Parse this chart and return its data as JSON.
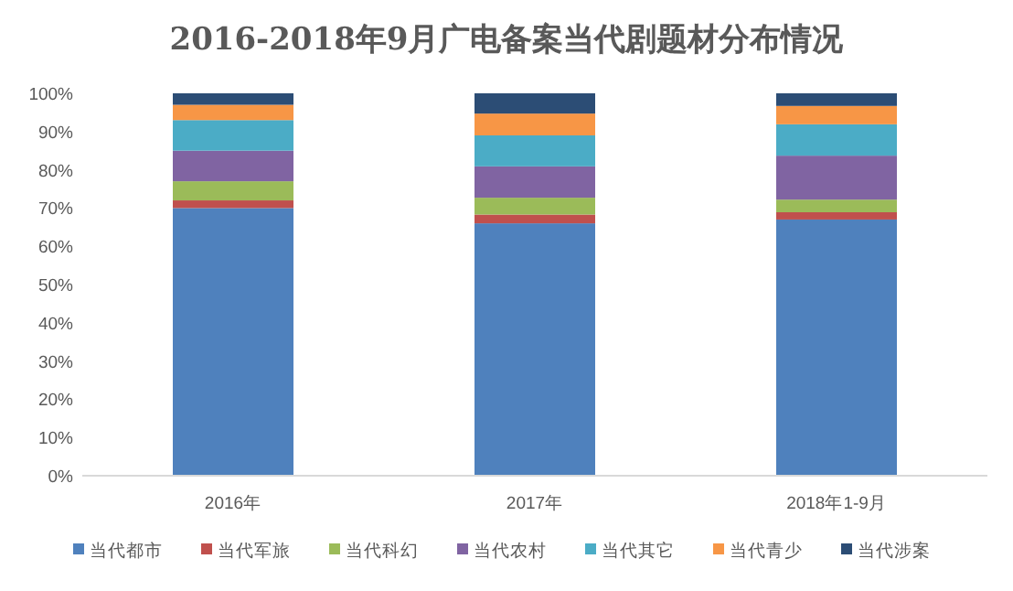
{
  "chart_data": {
    "type": "bar",
    "stacked": true,
    "title": "2016-2018年9月广电备案当代剧题材分布情况",
    "categories": [
      "2016年",
      "2017年",
      "2018年1-9月"
    ],
    "series": [
      {
        "name": "当代都市",
        "color": "#4f81bd",
        "values": [
          70,
          66,
          67
        ]
      },
      {
        "name": "当代军旅",
        "color": "#c0504d",
        "values": [
          2,
          2.3,
          1.9
        ]
      },
      {
        "name": "当代科幻",
        "color": "#9bbb59",
        "values": [
          5,
          4.4,
          3.3
        ]
      },
      {
        "name": "当代农村",
        "color": "#8064a2",
        "values": [
          8,
          8.2,
          11.5
        ]
      },
      {
        "name": "当代其它",
        "color": "#4bacc6",
        "values": [
          8,
          8.1,
          8.2
        ]
      },
      {
        "name": "当代青少",
        "color": "#f79646",
        "values": [
          4,
          5.7,
          4.8
        ]
      },
      {
        "name": "当代涉案",
        "color": "#2c4d75",
        "values": [
          3,
          5.3,
          3.3
        ]
      }
    ],
    "ylim": [
      0,
      100
    ],
    "yticks": [
      {
        "value": 0,
        "label": "0%"
      },
      {
        "value": 10,
        "label": "10%"
      },
      {
        "value": 20,
        "label": "20%"
      },
      {
        "value": 30,
        "label": "30%"
      },
      {
        "value": 40,
        "label": "40%"
      },
      {
        "value": 50,
        "label": "50%"
      },
      {
        "value": 60,
        "label": "60%"
      },
      {
        "value": 70,
        "label": "70%"
      },
      {
        "value": 80,
        "label": "80%"
      },
      {
        "value": 90,
        "label": "90%"
      },
      {
        "value": 100,
        "label": "100%"
      }
    ],
    "legend": "bottom"
  }
}
